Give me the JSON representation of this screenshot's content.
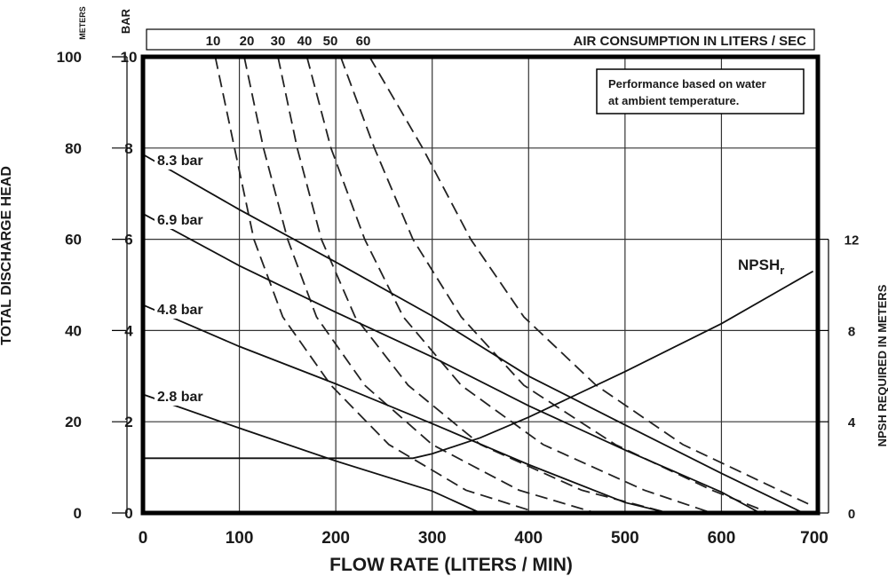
{
  "chart_data": {
    "type": "line",
    "title": "",
    "xlabel": "FLOW RATE (LITERS / MIN)",
    "ylabel": "TOTAL DISCHARGE HEAD",
    "y_unit_meters": "METERS",
    "y_unit_bar": "BAR",
    "y2label": "NPSH REQUIRED IN METERS",
    "air_label": "AIR CONSUMPTION IN LITERS / SEC",
    "note_line1": "Performance based on water",
    "note_line2": "at ambient temperature.",
    "xlim": [
      0,
      700
    ],
    "ylim_meters": [
      0,
      100
    ],
    "ylim_bar": [
      0,
      10
    ],
    "y2lim": [
      0,
      12
    ],
    "x_ticks": [
      "0",
      "100",
      "200",
      "300",
      "400",
      "500",
      "600",
      "700"
    ],
    "y_ticks_meters": [
      "0",
      "20",
      "40",
      "60",
      "80",
      "100"
    ],
    "y_ticks_bar": [
      "0",
      "2",
      "4",
      "6",
      "8",
      "10"
    ],
    "y2_ticks": [
      "0",
      "4",
      "8",
      "12"
    ],
    "pressure_curves": [
      {
        "name": "8.3 bar",
        "points": [
          [
            0,
            78.6
          ],
          [
            100,
            66.5
          ],
          [
            200,
            55
          ],
          [
            300,
            43.2
          ],
          [
            400,
            30
          ],
          [
            500,
            19.3
          ],
          [
            600,
            8.7
          ],
          [
            685,
            0
          ]
        ]
      },
      {
        "name": "6.9 bar",
        "points": [
          [
            0,
            65.6
          ],
          [
            100,
            54.2
          ],
          [
            200,
            44
          ],
          [
            300,
            34.2
          ],
          [
            400,
            23.5
          ],
          [
            500,
            13.8
          ],
          [
            600,
            4.6
          ],
          [
            640,
            0
          ]
        ]
      },
      {
        "name": "4.8 bar",
        "points": [
          [
            0,
            45.6
          ],
          [
            100,
            36.5
          ],
          [
            200,
            28.3
          ],
          [
            300,
            19.6
          ],
          [
            400,
            10.6
          ],
          [
            500,
            2.3
          ],
          [
            545,
            0
          ]
        ]
      },
      {
        "name": "2.8 bar",
        "points": [
          [
            0,
            26
          ],
          [
            100,
            18.6
          ],
          [
            200,
            11.4
          ],
          [
            300,
            4.8
          ],
          [
            350,
            0
          ]
        ]
      }
    ],
    "air_curves": [
      {
        "name": "10",
        "points": [
          [
            75,
            100
          ],
          [
            95,
            80
          ],
          [
            115,
            60
          ],
          [
            145,
            43
          ],
          [
            195,
            28
          ],
          [
            255,
            15
          ],
          [
            335,
            5
          ],
          [
            410,
            0
          ]
        ]
      },
      {
        "name": "20",
        "points": [
          [
            105,
            100
          ],
          [
            125,
            80
          ],
          [
            150,
            60
          ],
          [
            180,
            43
          ],
          [
            230,
            28
          ],
          [
            300,
            15
          ],
          [
            390,
            5
          ],
          [
            470,
            0
          ]
        ]
      },
      {
        "name": "30",
        "points": [
          [
            140,
            100
          ],
          [
            160,
            80
          ],
          [
            185,
            60
          ],
          [
            220,
            43
          ],
          [
            275,
            28
          ],
          [
            350,
            15
          ],
          [
            455,
            5
          ],
          [
            545,
            0
          ]
        ]
      },
      {
        "name": "40",
        "points": [
          [
            170,
            100
          ],
          [
            195,
            80
          ],
          [
            230,
            60
          ],
          [
            270,
            43
          ],
          [
            330,
            28
          ],
          [
            415,
            15
          ],
          [
            520,
            5
          ],
          [
            590,
            0
          ]
        ]
      },
      {
        "name": "50",
        "points": [
          [
            205,
            100
          ],
          [
            240,
            80
          ],
          [
            280,
            60
          ],
          [
            330,
            43
          ],
          [
            395,
            28
          ],
          [
            490,
            15
          ],
          [
            590,
            5
          ],
          [
            650,
            0
          ]
        ]
      },
      {
        "name": "60",
        "points": [
          [
            235,
            100
          ],
          [
            290,
            80
          ],
          [
            340,
            60
          ],
          [
            395,
            43
          ],
          [
            470,
            28
          ],
          [
            560,
            15
          ],
          [
            650,
            6
          ],
          [
            690,
            2
          ]
        ]
      }
    ],
    "npsh_curve": {
      "name": "NPSHr",
      "label_main": "NPSH",
      "label_sub": "r",
      "points": [
        [
          0,
          2.4
        ],
        [
          280,
          2.4
        ],
        [
          300,
          2.6
        ],
        [
          350,
          3.3
        ],
        [
          400,
          4.2
        ],
        [
          500,
          6.2
        ],
        [
          600,
          8.3
        ],
        [
          695,
          10.6
        ]
      ]
    },
    "grid": true,
    "legend": "none"
  }
}
